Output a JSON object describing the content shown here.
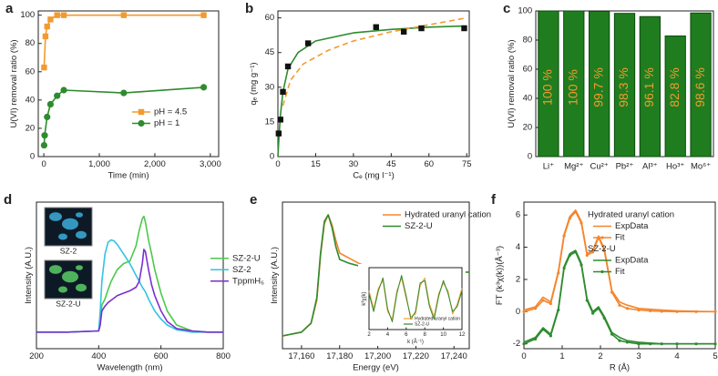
{
  "chart_data": [
    {
      "type": "line",
      "label": "a",
      "xlabel": "Time (min)",
      "ylabel": "U(VI) removal ratio (%)",
      "xlim": [
        -100,
        3150
      ],
      "xticks": [
        0,
        {
          "value": 1000,
          "label": "1,000"
        },
        {
          "value": 2000,
          "label": "2,000"
        },
        {
          "value": 3000,
          "label": "3,000"
        }
      ],
      "ylim": [
        0,
        103
      ],
      "yticks": [
        0,
        20,
        40,
        60,
        80,
        100
      ],
      "legend": "lower right",
      "series": [
        {
          "name": "pH = 4.5",
          "color": "#f39a2e",
          "style": "line+markers",
          "marker": "square",
          "x": [
            5,
            30,
            60,
            120,
            240,
            360,
            1440,
            2880
          ],
          "values": [
            63,
            85,
            92,
            97,
            100,
            100,
            100,
            100
          ]
        },
        {
          "name": "pH = 1",
          "color": "#2e8b2e",
          "style": "line+markers",
          "marker": "circle",
          "x": [
            5,
            15,
            60,
            120,
            240,
            360,
            1440,
            2880
          ],
          "values": [
            8,
            15,
            28,
            37,
            43,
            47,
            45,
            49
          ]
        }
      ]
    },
    {
      "type": "line",
      "label": "b",
      "xlabel": "Cₑ (mg l⁻¹)",
      "ylabel": "qₑ (mg g⁻¹)",
      "xlim": [
        0,
        76
      ],
      "xticks": [
        0,
        15,
        30,
        45,
        60,
        75
      ],
      "ylim": [
        0,
        63
      ],
      "yticks": [
        0,
        15,
        30,
        45,
        60
      ],
      "series": [
        {
          "color": "#2e8b2e",
          "style": "line",
          "x": [
            0,
            0.5,
            1,
            2,
            4,
            8,
            15,
            30,
            45,
            60,
            75
          ],
          "values": [
            0,
            10,
            18,
            28,
            38,
            45,
            50,
            53.5,
            55,
            56,
            56.5
          ]
        },
        {
          "color": "#f39a2e",
          "style": "dashed",
          "x": [
            2,
            5,
            10,
            20,
            30,
            45,
            60,
            75
          ],
          "values": [
            22,
            33,
            40,
            46,
            50,
            54,
            57,
            60
          ]
        },
        {
          "color": "#111111",
          "style": "markers",
          "marker": "square",
          "x": [
            0.3,
            1,
            2,
            4,
            12,
            39,
            50,
            57,
            74
          ],
          "values": [
            10,
            16,
            28,
            39,
            49,
            56,
            54,
            55.5,
            55.5
          ]
        }
      ]
    },
    {
      "type": "bar",
      "label": "c",
      "ylabel": "U(VI) removal ratio (%)",
      "categories": [
        "Li⁺",
        "Mg²⁺",
        "Cu²⁺",
        "Pb²⁺",
        "Al³⁺",
        "Ho³⁺",
        "Mo⁶⁺"
      ],
      "values": [
        100,
        100,
        99.7,
        98.3,
        96.1,
        82.8,
        98.6
      ],
      "value_labels": [
        "100 %",
        "100 %",
        "99.7 %",
        "98.3 %",
        "96.1 %",
        "82.8 %",
        "98.6 %"
      ],
      "color": "#1f7d1f",
      "label_color": "#f39a2e",
      "ylim": [
        0,
        100
      ],
      "yticks": [
        0,
        20,
        40,
        60,
        80,
        100
      ]
    },
    {
      "type": "line",
      "label": "d",
      "xlabel": "Wavelength (nm)",
      "ylabel": "Intensity (A.U.)",
      "xlim": [
        200,
        800
      ],
      "xticks": [
        200,
        400,
        600,
        800
      ],
      "ylim": [
        -0.12,
        1.12
      ],
      "legend": "outside right",
      "insets": [
        "SZ-2",
        "SZ-2-U"
      ],
      "series": [
        {
          "name": "SZ-2-U",
          "color": "#4cc94c",
          "style": "line",
          "x": [
            200,
            300,
            400,
            405,
            410,
            420,
            430,
            440,
            450,
            460,
            480,
            500,
            520,
            530,
            540,
            545,
            550,
            560,
            570,
            580,
            600,
            620,
            650,
            700,
            750,
            800
          ],
          "values": [
            0.02,
            0.02,
            0.03,
            0.1,
            0.25,
            0.3,
            0.38,
            0.45,
            0.5,
            0.55,
            0.6,
            0.62,
            0.75,
            0.88,
            0.98,
            1.0,
            0.95,
            0.8,
            0.68,
            0.55,
            0.35,
            0.2,
            0.08,
            0.03,
            0.02,
            0.02
          ]
        },
        {
          "name": "SZ-2",
          "color": "#33c4e0",
          "style": "line",
          "x": [
            200,
            300,
            400,
            405,
            410,
            420,
            430,
            440,
            450,
            460,
            480,
            500,
            520,
            530,
            540,
            545,
            550,
            560,
            570,
            580,
            600,
            620,
            650,
            700,
            750,
            800
          ],
          "values": [
            0.02,
            0.02,
            0.03,
            0.2,
            0.45,
            0.68,
            0.78,
            0.8,
            0.79,
            0.76,
            0.68,
            0.6,
            0.5,
            0.45,
            0.4,
            0.38,
            0.36,
            0.3,
            0.25,
            0.2,
            0.13,
            0.08,
            0.04,
            0.02,
            0.02,
            0.02
          ]
        },
        {
          "name": "TppmH₆",
          "color": "#7a2fd0",
          "style": "line",
          "x": [
            200,
            300,
            400,
            405,
            410,
            420,
            430,
            440,
            450,
            460,
            480,
            500,
            520,
            530,
            540,
            545,
            550,
            560,
            570,
            580,
            600,
            620,
            650,
            700,
            750,
            800
          ],
          "values": [
            0.02,
            0.02,
            0.03,
            0.08,
            0.2,
            0.24,
            0.27,
            0.29,
            0.31,
            0.33,
            0.35,
            0.37,
            0.4,
            0.45,
            0.6,
            0.72,
            0.7,
            0.55,
            0.42,
            0.33,
            0.2,
            0.11,
            0.05,
            0.03,
            0.02,
            0.02
          ]
        }
      ]
    },
    {
      "type": "line",
      "label": "e",
      "xlabel": "Energy (eV)",
      "ylabel": "Intensity (A.U.)",
      "xlim": [
        17150,
        17248
      ],
      "xticks": [
        {
          "value": 17160,
          "label": "17,160"
        },
        {
          "value": 17180,
          "label": "17,180"
        },
        {
          "value": 17200,
          "label": "17,200"
        },
        {
          "value": 17220,
          "label": "17,220"
        },
        {
          "value": 17240,
          "label": "17,240"
        }
      ],
      "ylim": [
        -0.05,
        1.1
      ],
      "legend": "upper right",
      "series": [
        {
          "name": "Hydrated uranyl cation",
          "color": "#f3862e",
          "style": "line",
          "x": [
            17150,
            17160,
            17165,
            17168,
            17170,
            17172,
            17174,
            17176,
            17178,
            17180,
            17185,
            17190,
            17195,
            17200,
            17210,
            17220,
            17230,
            17240,
            17248
          ],
          "values": [
            0.05,
            0.08,
            0.15,
            0.33,
            0.68,
            0.93,
            1.0,
            0.92,
            0.8,
            0.7,
            0.66,
            0.62,
            0.59,
            0.56,
            0.56,
            0.56,
            0.55,
            0.56,
            0.55
          ]
        },
        {
          "name": "SZ-2-U",
          "color": "#2e8b2e",
          "style": "line",
          "x": [
            17150,
            17160,
            17165,
            17168,
            17170,
            17172,
            17174,
            17176,
            17178,
            17180,
            17185,
            17190,
            17195,
            17200,
            17210,
            17220,
            17230,
            17240,
            17248
          ],
          "values": [
            0.05,
            0.08,
            0.15,
            0.35,
            0.7,
            0.95,
            1.0,
            0.9,
            0.75,
            0.65,
            0.62,
            0.6,
            0.58,
            0.55,
            0.56,
            0.55,
            0.56,
            0.55,
            0.55
          ]
        }
      ],
      "inset": {
        "xlabel": "k (Å⁻¹)",
        "ylabel": "k³χ(k)",
        "xlim": [
          2,
          12
        ],
        "xticks": [
          2,
          4,
          6,
          8,
          10,
          12
        ],
        "ylim": [
          -1.2,
          1.2
        ],
        "series": [
          {
            "name": "Hydrated uranyl cation",
            "color": "#f3a02e",
            "style": "line",
            "x": [
              2,
              2.5,
              3,
              3.5,
              4,
              4.5,
              5,
              5.5,
              6,
              6.5,
              7,
              7.5,
              8,
              8.5,
              9,
              9.5,
              10,
              10.5,
              11,
              11.5,
              12
            ],
            "values": [
              0.3,
              -0.4,
              0.4,
              0.7,
              -0.5,
              -0.8,
              0.3,
              0.8,
              0.0,
              -0.7,
              -0.6,
              0.5,
              0.8,
              -0.2,
              -0.7,
              0.2,
              0.6,
              0.3,
              -0.6,
              -0.2,
              0.4
            ]
          },
          {
            "name": "SZ-2-U",
            "color": "#2e8b2e",
            "style": "line",
            "x": [
              2,
              2.5,
              3,
              3.5,
              4,
              4.5,
              5,
              5.5,
              6,
              6.5,
              7,
              7.5,
              8,
              8.5,
              9,
              9.5,
              10,
              10.5,
              11,
              11.5,
              12
            ],
            "values": [
              0.2,
              -0.5,
              0.3,
              0.8,
              -0.4,
              -0.9,
              0.2,
              0.9,
              0.1,
              -0.8,
              -0.5,
              0.6,
              0.7,
              -0.3,
              -0.8,
              0.1,
              0.7,
              0.2,
              -0.5,
              -0.3,
              0.3
            ]
          }
        ]
      }
    },
    {
      "type": "line",
      "label": "f",
      "xlabel": "R (Å)",
      "ylabel": "FT (k³χ(k))(Å⁻³)",
      "xlim": [
        0,
        5
      ],
      "xticks": [
        0,
        1,
        2,
        3,
        4,
        5
      ],
      "ylim": [
        -2.3,
        6.8
      ],
      "yticks": [
        -2,
        0,
        2,
        4,
        6
      ],
      "legend": "upper right",
      "legend_groups": [
        "Hydrated uranyl cation",
        "SZ-2-U"
      ],
      "series": [
        {
          "name": "ExpData",
          "color": "#f3862e",
          "style": "line",
          "x": [
            0,
            0.3,
            0.5,
            0.7,
            0.9,
            1.05,
            1.2,
            1.35,
            1.5,
            1.65,
            1.8,
            1.95,
            2.1,
            2.3,
            2.5,
            2.7,
            3.0,
            3.3,
            3.6,
            4.0,
            4.5,
            5.0
          ],
          "values": [
            0.1,
            0.3,
            0.9,
            0.6,
            2.5,
            4.8,
            5.9,
            6.3,
            5.6,
            3.6,
            3.8,
            4.7,
            3.9,
            1.3,
            0.6,
            0.4,
            0.2,
            0.15,
            0.1,
            0.05,
            0.02,
            0.0
          ]
        },
        {
          "name": "Fit",
          "color": "#f3862e",
          "style": "line+markers",
          "marker": "dot",
          "x": [
            0,
            0.3,
            0.5,
            0.7,
            0.9,
            1.05,
            1.2,
            1.35,
            1.5,
            1.65,
            1.8,
            1.95,
            2.1,
            2.3,
            2.5,
            2.7,
            3.0,
            3.3,
            3.6,
            4.0,
            4.5,
            5.0
          ],
          "values": [
            0.0,
            0.2,
            0.7,
            0.5,
            2.4,
            4.7,
            5.8,
            6.2,
            5.5,
            3.5,
            3.7,
            4.6,
            3.8,
            1.2,
            0.4,
            0.2,
            0.1,
            0.05,
            0.02,
            0.0,
            0.0,
            0.0
          ]
        },
        {
          "name": "ExpData",
          "color": "#2e8b2e",
          "style": "line",
          "x": [
            0,
            0.3,
            0.5,
            0.7,
            0.9,
            1.05,
            1.2,
            1.35,
            1.5,
            1.65,
            1.8,
            1.95,
            2.1,
            2.3,
            2.5,
            2.7,
            3.0,
            3.3,
            3.6,
            4.0,
            4.5,
            5.0
          ],
          "values": [
            -1.9,
            -1.6,
            -1.0,
            -1.4,
            0.2,
            2.8,
            3.6,
            3.8,
            3.0,
            0.8,
            0.0,
            0.3,
            -0.3,
            -1.3,
            -1.6,
            -1.8,
            -1.9,
            -1.95,
            -2.0,
            -2.0,
            -2.0,
            -2.0
          ]
        },
        {
          "name": "Fit",
          "color": "#2e8b2e",
          "style": "line+markers",
          "marker": "dot",
          "x": [
            0,
            0.3,
            0.5,
            0.7,
            0.9,
            1.05,
            1.2,
            1.35,
            1.5,
            1.65,
            1.8,
            1.95,
            2.1,
            2.3,
            2.5,
            2.7,
            3.0,
            3.3,
            3.6,
            4.0,
            4.5,
            5.0
          ],
          "values": [
            -2.0,
            -1.7,
            -1.1,
            -1.5,
            0.1,
            2.7,
            3.5,
            3.7,
            2.9,
            0.7,
            -0.1,
            0.2,
            -0.4,
            -1.4,
            -1.8,
            -1.9,
            -2.0,
            -2.0,
            -2.0,
            -2.0,
            -2.0,
            -2.0
          ]
        }
      ]
    }
  ]
}
